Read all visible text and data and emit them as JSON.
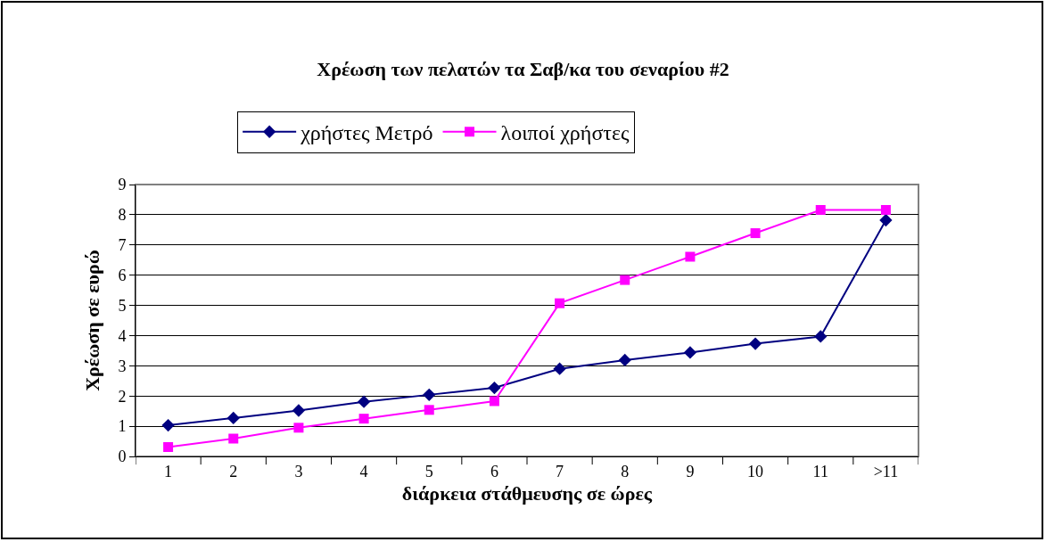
{
  "chart_data": {
    "type": "line",
    "title": "Χρέωση των πελατών τα Σαβ/κα του σεναρίου #2",
    "xlabel": "διάρκεια στάθμευσης σε ώρες",
    "ylabel": "Χρέωση σε ευρώ",
    "categories": [
      "1",
      "2",
      "3",
      "4",
      "5",
      "6",
      "7",
      "8",
      "9",
      "10",
      "11",
      ">11"
    ],
    "series": [
      {
        "name": "χρήστες Μετρό",
        "color": "#000080",
        "marker": "diamond",
        "values": [
          1.03,
          1.27,
          1.52,
          1.81,
          2.04,
          2.27,
          2.9,
          3.19,
          3.44,
          3.73,
          3.97,
          7.82
        ]
      },
      {
        "name": "λοιποί χρήστες",
        "color": "#ff00ff",
        "marker": "square",
        "values": [
          0.31,
          0.59,
          0.95,
          1.25,
          1.54,
          1.83,
          5.07,
          5.84,
          6.61,
          7.39,
          8.16,
          8.16
        ]
      }
    ],
    "ylim": [
      0,
      9
    ],
    "yticks": [
      0,
      1,
      2,
      3,
      4,
      5,
      6,
      7,
      8,
      9
    ],
    "grid": "y",
    "legend": "top",
    "line_style": "solid"
  }
}
